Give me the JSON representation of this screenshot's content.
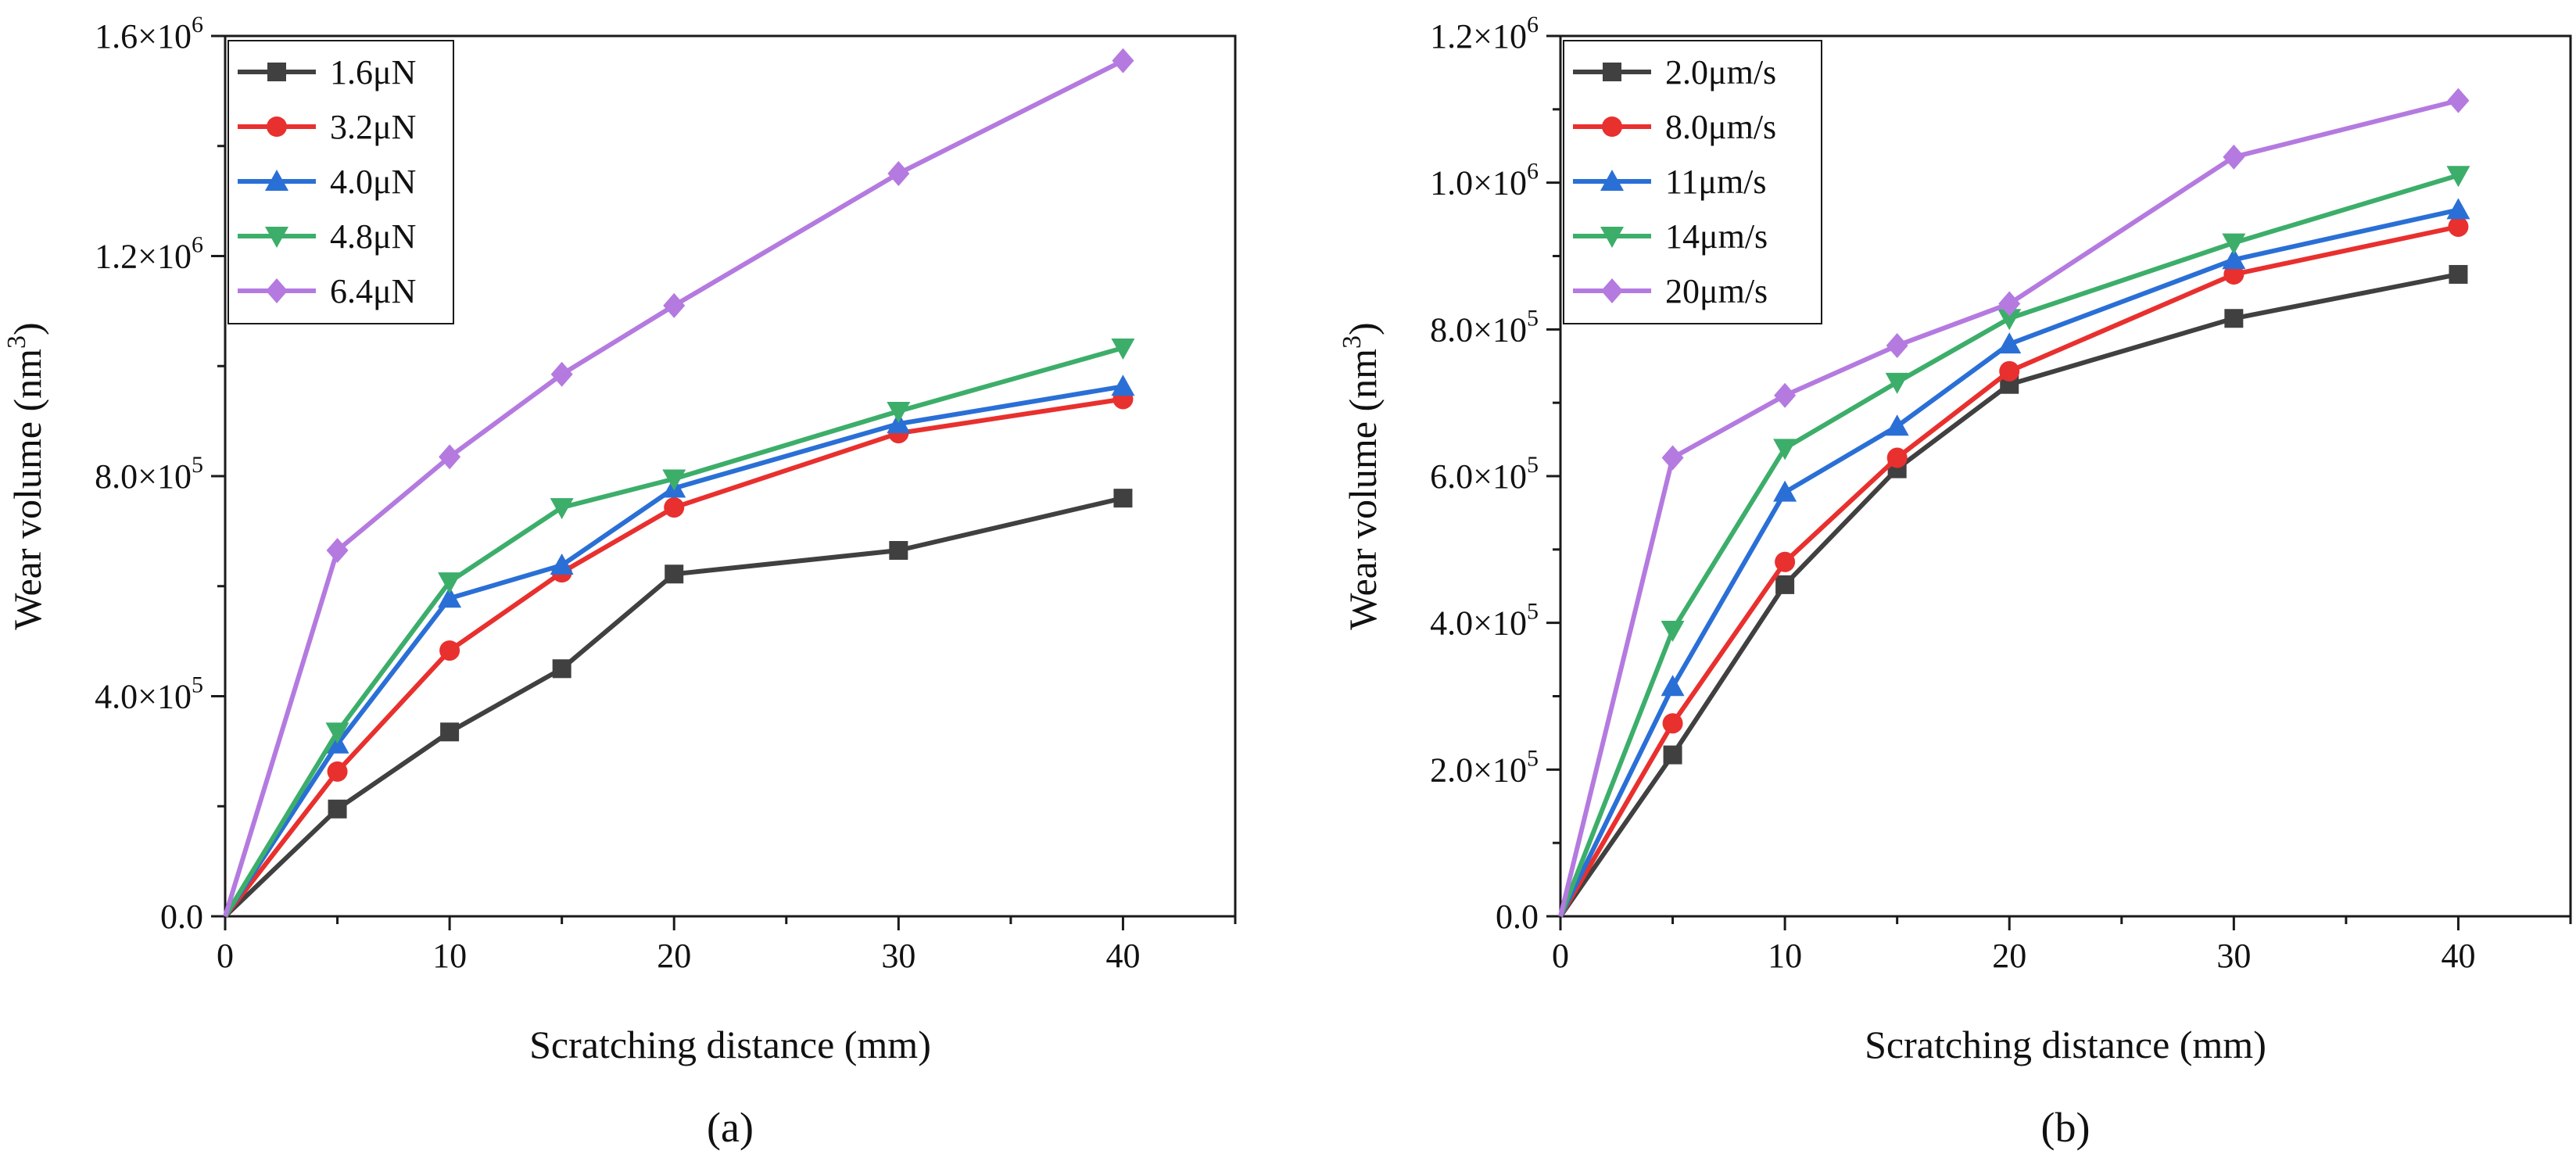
{
  "chart_data": [
    {
      "type": "line",
      "panel_label": "(a)",
      "xlabel": "Scratching distance (mm)",
      "ylabel_main": "Wear volume (nm",
      "ylabel_sup": "3",
      "ylabel_close": ")",
      "xlim": [
        0,
        45
      ],
      "ylim": [
        0,
        1600000
      ],
      "xticks": [
        0,
        10,
        20,
        30,
        40
      ],
      "xtick_labels": [
        "0",
        "10",
        "20",
        "30",
        "40"
      ],
      "yticks": [
        0,
        400000,
        800000,
        1200000,
        1600000
      ],
      "ytick_labels": [
        {
          "base": "0.0",
          "exp": ""
        },
        {
          "base": "4.0×10",
          "exp": "5"
        },
        {
          "base": "8.0×10",
          "exp": "5"
        },
        {
          "base": "1.2×10",
          "exp": "6"
        },
        {
          "base": "1.6×10",
          "exp": "6"
        }
      ],
      "legend_position": "top-left",
      "x": [
        0,
        5,
        10,
        15,
        20,
        30,
        40
      ],
      "series": [
        {
          "name": "1.6μN",
          "color": "#404040",
          "marker": "square",
          "values": [
            0,
            195000,
            335000,
            450000,
            622000,
            665000,
            760000
          ]
        },
        {
          "name": "3.2μN",
          "color": "#e8302e",
          "marker": "circle",
          "values": [
            0,
            263000,
            483000,
            625000,
            743000,
            878000,
            940000
          ]
        },
        {
          "name": "4.0μN",
          "color": "#2a6fd6",
          "marker": "triangle-up",
          "values": [
            0,
            313000,
            578000,
            638000,
            778000,
            895000,
            963000
          ]
        },
        {
          "name": "4.8μN",
          "color": "#3cae6a",
          "marker": "triangle-down",
          "values": [
            0,
            335000,
            608000,
            743000,
            795000,
            918000,
            1033000
          ]
        },
        {
          "name": "6.4μN",
          "color": "#b47ae0",
          "marker": "diamond",
          "values": [
            0,
            665000,
            835000,
            985000,
            1110000,
            1350000,
            1555000
          ]
        }
      ]
    },
    {
      "type": "line",
      "panel_label": "(b)",
      "xlabel": "Scratching distance (mm)",
      "ylabel_main": "Wear volume (nm",
      "ylabel_sup": "3",
      "ylabel_close": ")",
      "xlim": [
        0,
        45
      ],
      "ylim": [
        0,
        1200000
      ],
      "xticks": [
        0,
        10,
        20,
        30,
        40
      ],
      "xtick_labels": [
        "0",
        "10",
        "20",
        "30",
        "40"
      ],
      "yticks": [
        0,
        200000,
        400000,
        600000,
        800000,
        1000000,
        1200000
      ],
      "ytick_labels": [
        {
          "base": "0.0",
          "exp": ""
        },
        {
          "base": "2.0×10",
          "exp": "5"
        },
        {
          "base": "4.0×10",
          "exp": "5"
        },
        {
          "base": "6.0×10",
          "exp": "5"
        },
        {
          "base": "8.0×10",
          "exp": "5"
        },
        {
          "base": "1.0×10",
          "exp": "6"
        },
        {
          "base": "1.2×10",
          "exp": "6"
        }
      ],
      "legend_position": "top-left",
      "x": [
        0,
        5,
        10,
        15,
        20,
        30,
        40
      ],
      "series": [
        {
          "name": "2.0μm/s",
          "color": "#404040",
          "marker": "square",
          "values": [
            0,
            220000,
            452000,
            610000,
            725000,
            815000,
            875000
          ]
        },
        {
          "name": "8.0μm/s",
          "color": "#e8302e",
          "marker": "circle",
          "values": [
            0,
            263000,
            483000,
            625000,
            743000,
            875000,
            940000
          ]
        },
        {
          "name": "11μm/s",
          "color": "#2a6fd6",
          "marker": "triangle-up",
          "values": [
            0,
            313000,
            578000,
            668000,
            780000,
            895000,
            963000
          ]
        },
        {
          "name": "14μm/s",
          "color": "#3cae6a",
          "marker": "triangle-down",
          "values": [
            0,
            390000,
            638000,
            728000,
            815000,
            918000,
            1010000
          ]
        },
        {
          "name": "20μm/s",
          "color": "#b47ae0",
          "marker": "diamond",
          "values": [
            0,
            625000,
            710000,
            778000,
            835000,
            1035000,
            1112000
          ]
        }
      ]
    }
  ]
}
